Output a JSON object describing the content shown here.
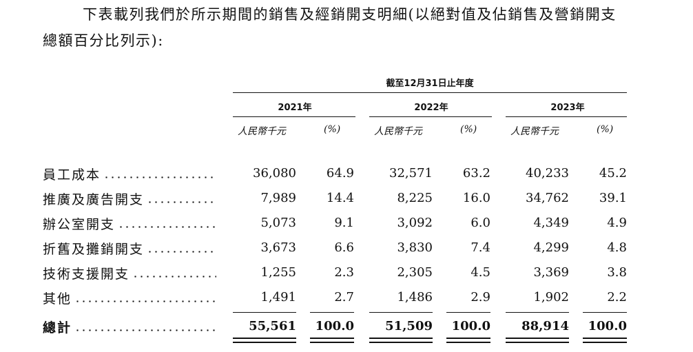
{
  "intro": {
    "line1": "下表載列我們於所示期間的銷售及經銷開支明細(以絕對值及佔銷售及營銷開支",
    "line2": "總額百分比列示):"
  },
  "table": {
    "period_header": "截至12月31日止年度",
    "years": [
      "2021年",
      "2022年",
      "2023年"
    ],
    "unit_label": "人民幣千元",
    "percent_label": "(%)",
    "rows": [
      {
        "label": "員工成本",
        "values": [
          "36,080",
          "64.9",
          "32,571",
          "63.2",
          "40,233",
          "45.2"
        ]
      },
      {
        "label": "推廣及廣告開支",
        "values": [
          "7,989",
          "14.4",
          "8,225",
          "16.0",
          "34,762",
          "39.1"
        ]
      },
      {
        "label": "辦公室開支",
        "values": [
          "5,073",
          "9.1",
          "3,092",
          "6.0",
          "4,349",
          "4.9"
        ]
      },
      {
        "label": "折舊及攤銷開支",
        "values": [
          "3,673",
          "6.6",
          "3,830",
          "7.4",
          "4,299",
          "4.8"
        ]
      },
      {
        "label": "技術支援開支",
        "values": [
          "1,255",
          "2.3",
          "2,305",
          "4.5",
          "3,369",
          "3.8"
        ]
      },
      {
        "label": "其他",
        "values": [
          "1,491",
          "2.7",
          "1,486",
          "2.9",
          "1,902",
          "2.2"
        ]
      }
    ],
    "total": {
      "label": "總計",
      "values": [
        "55,561",
        "100.0",
        "51,509",
        "100.0",
        "88,914",
        "100.0"
      ]
    }
  }
}
